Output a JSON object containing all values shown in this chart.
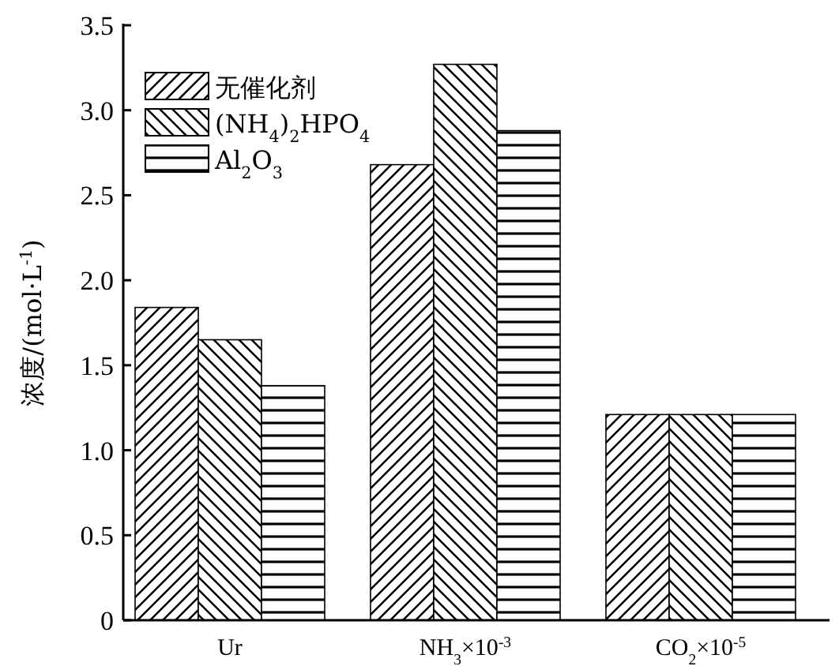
{
  "chart_data": {
    "type": "bar",
    "categories": [
      "Ur",
      "NH$_{3}$×10$^{-3}$",
      "CO$_{2}$×10$^{-5}$"
    ],
    "ylabel": "浓度/(mol·L$^{-1}$)",
    "ylim": [
      0,
      3.5
    ],
    "yticks": [
      0,
      0.5,
      {
        "value": 1,
        "label": "1.0"
      },
      1.5,
      {
        "value": 2,
        "label": "2.0"
      },
      2.5,
      {
        "value": 3,
        "label": "3.0"
      },
      3.5
    ],
    "legend": "top left",
    "series": [
      {
        "name": "无催化剂",
        "color": "#000000",
        "values": [
          1.84,
          2.68,
          1.21
        ]
      },
      {
        "name": "(NH$_{4}$)$_{2}$HPO$_{4}$",
        "color": "#000000",
        "values": [
          1.65,
          3.27,
          1.21
        ]
      },
      {
        "name": "Al$_{2}$O$_{3}$",
        "color": "#000000",
        "values": [
          1.38,
          2.88,
          1.21
        ]
      }
    ]
  }
}
